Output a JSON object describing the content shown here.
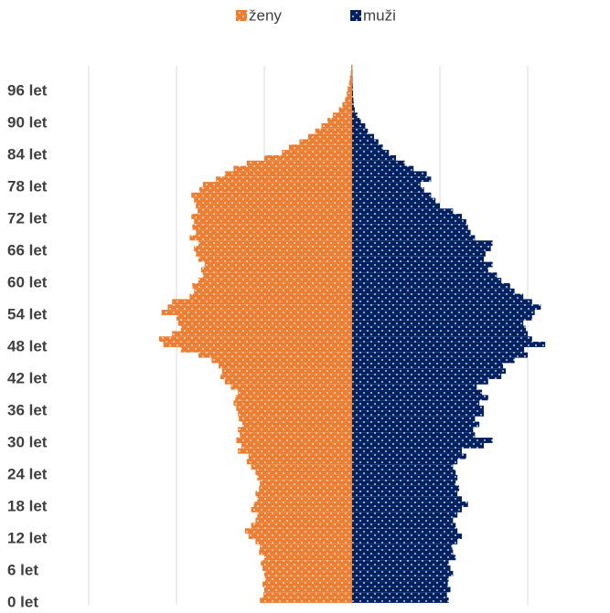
{
  "chart_data": {
    "type": "pyramid",
    "categories": [
      "0 let",
      null,
      null,
      null,
      null,
      null,
      "6 let",
      null,
      null,
      null,
      null,
      null,
      "12 let",
      null,
      null,
      null,
      null,
      null,
      "18 let",
      null,
      null,
      null,
      null,
      null,
      "24 let",
      null,
      null,
      null,
      null,
      null,
      "30 let",
      null,
      null,
      null,
      null,
      null,
      "36 let",
      null,
      null,
      null,
      null,
      null,
      "42 let",
      null,
      null,
      null,
      null,
      null,
      "48 let",
      null,
      null,
      null,
      null,
      null,
      "54 let",
      null,
      null,
      null,
      null,
      null,
      "60 let",
      null,
      null,
      null,
      null,
      null,
      "66 let",
      null,
      null,
      null,
      null,
      null,
      "72 let",
      null,
      null,
      null,
      null,
      null,
      "78 let",
      null,
      null,
      null,
      null,
      null,
      "84 let",
      null,
      null,
      null,
      null,
      null,
      "90 let",
      null,
      null,
      null,
      null,
      null,
      "96 let",
      null,
      null,
      null,
      null
    ],
    "series": [
      {
        "name": "ženy",
        "color": "#ed7d31",
        "side": "left",
        "values": [
          1050,
          1010,
          1000,
          1020,
          990,
          1000,
          1020,
          1040,
          1000,
          1060,
          1050,
          1100,
          1180,
          1220,
          1150,
          1100,
          1080,
          1150,
          1120,
          1080,
          1100,
          1060,
          1050,
          1080,
          1100,
          1150,
          1200,
          1180,
          1300,
          1260,
          1320,
          1280,
          1300,
          1250,
          1290,
          1300,
          1320,
          1350,
          1330,
          1300,
          1380,
          1450,
          1500,
          1480,
          1520,
          1600,
          1750,
          1950,
          2150,
          2200,
          2050,
          1950,
          1980,
          2000,
          2170,
          2100,
          2050,
          1850,
          1800,
          1820,
          1750,
          1700,
          1720,
          1680,
          1750,
          1780,
          1800,
          1750,
          1850,
          1780,
          1820,
          1800,
          1830,
          1760,
          1780,
          1800,
          1830,
          1740,
          1700,
          1550,
          1450,
          1350,
          1200,
          1000,
          800,
          720,
          600,
          500,
          420,
          350,
          280,
          220,
          150,
          110,
          80,
          60,
          50,
          35,
          25,
          15,
          10
        ]
      },
      {
        "name": "muži",
        "color": "#002060",
        "side": "right",
        "values": [
          1100,
          1080,
          1120,
          1090,
          1100,
          1150,
          1120,
          1100,
          1180,
          1150,
          1140,
          1200,
          1250,
          1200,
          1180,
          1150,
          1200,
          1250,
          1320,
          1250,
          1200,
          1220,
          1180,
          1200,
          1180,
          1150,
          1200,
          1300,
          1250,
          1500,
          1600,
          1400,
          1380,
          1450,
          1400,
          1500,
          1500,
          1450,
          1550,
          1480,
          1420,
          1550,
          1700,
          1750,
          1720,
          1850,
          2000,
          1960,
          2200,
          2050,
          2000,
          1980,
          1950,
          2050,
          2080,
          2150,
          2050,
          1950,
          1850,
          1800,
          1700,
          1650,
          1550,
          1600,
          1500,
          1520,
          1580,
          1600,
          1400,
          1350,
          1320,
          1300,
          1250,
          1150,
          1000,
          950,
          900,
          820,
          780,
          900,
          850,
          700,
          600,
          500,
          420,
          350,
          300,
          250,
          180,
          150,
          100,
          60,
          30,
          20,
          15,
          10,
          8,
          6,
          4,
          3,
          2
        ]
      }
    ],
    "xlim": [
      -3000,
      3000
    ],
    "xticks": [
      -3000,
      -2000,
      -1000,
      0,
      1000,
      2000
    ],
    "grid": true,
    "legend": "top"
  }
}
